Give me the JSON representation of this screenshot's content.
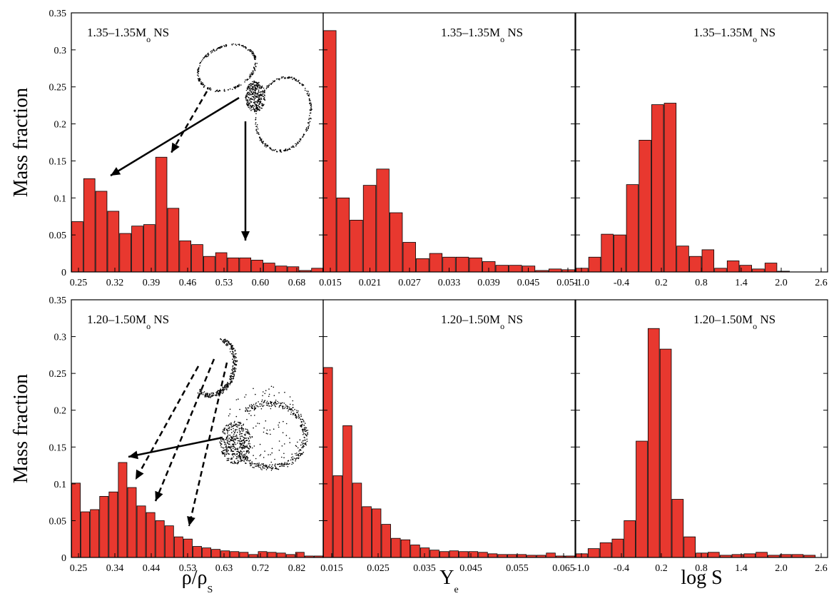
{
  "chart_data": {
    "type": "bar",
    "layout": "2x3 panel grid",
    "colors": {
      "bar": "#e8382f",
      "bar_stroke": "#000000",
      "axes": "#000000",
      "marker": "#000000"
    },
    "y_axis": {
      "label": "Mass fraction",
      "ylim": [
        0,
        0.35
      ],
      "ticks": [
        "0",
        "0.05",
        "0.1",
        "0.15",
        "0.2",
        "0.25",
        "0.3",
        "0.35"
      ]
    },
    "x_axis_labels": {
      "density": {
        "main": "ρ/ρ",
        "sub": "S"
      },
      "ye": {
        "main": "Y",
        "sub": "e"
      },
      "entropy": {
        "main": "log S",
        "sub": ""
      }
    },
    "rows": [
      {
        "model": {
          "prefix": "1.35–1.35M",
          "sub": "o",
          "suffix": " NS"
        },
        "panels": [
          {
            "quantity": "density",
            "ticks": [
              "0.25",
              "0.32",
              "0.39",
              "0.46",
              "0.53",
              "0.60",
              "0.68"
            ],
            "values": [
              0.068,
              0.126,
              0.109,
              0.082,
              0.052,
              0.062,
              0.064,
              0.155,
              0.086,
              0.042,
              0.037,
              0.021,
              0.026,
              0.019,
              0.019,
              0.016,
              0.012,
              0.008,
              0.007,
              0.002,
              0.005
            ]
          },
          {
            "quantity": "ye",
            "ticks": [
              "0.015",
              "0.021",
              "0.027",
              "0.033",
              "0.039",
              "0.045",
              "0.051"
            ],
            "values": [
              0.326,
              0.1,
              0.07,
              0.117,
              0.139,
              0.08,
              0.04,
              0.018,
              0.025,
              0.02,
              0.02,
              0.019,
              0.014,
              0.009,
              0.009,
              0.008,
              0.002,
              0.004,
              0.003
            ]
          },
          {
            "quantity": "entropy",
            "ticks": [
              "-1.0",
              "-0.4",
              "0.2",
              "0.8",
              "1.4",
              "2.0",
              "2.6"
            ],
            "values": [
              0.005,
              0.02,
              0.051,
              0.05,
              0.118,
              0.178,
              0.226,
              0.228,
              0.035,
              0.021,
              0.03,
              0.005,
              0.015,
              0.009,
              0.004,
              0.012,
              0.001,
              0,
              0,
              0
            ]
          }
        ]
      },
      {
        "model": {
          "prefix": "1.20–1.50M",
          "sub": "o",
          "suffix": " NS"
        },
        "panels": [
          {
            "quantity": "density",
            "ticks": [
              "0.25",
              "0.34",
              "0.44",
              "0.53",
              "0.63",
              "0.72",
              "0.82"
            ],
            "values": [
              0.101,
              0.062,
              0.065,
              0.083,
              0.089,
              0.129,
              0.095,
              0.07,
              0.061,
              0.05,
              0.043,
              0.028,
              0.025,
              0.015,
              0.013,
              0.011,
              0.009,
              0.008,
              0.007,
              0.004,
              0.008,
              0.007,
              0.006,
              0.004,
              0.007,
              0.002,
              0.002
            ]
          },
          {
            "quantity": "ye",
            "ticks": [
              "0.015",
              "0.025",
              "0.035",
              "0.045",
              "0.055",
              "0.065"
            ],
            "values": [
              0.258,
              0.111,
              0.179,
              0.101,
              0.069,
              0.066,
              0.045,
              0.026,
              0.024,
              0.017,
              0.013,
              0.01,
              0.008,
              0.009,
              0.008,
              0.008,
              0.007,
              0.005,
              0.004,
              0.004,
              0.004,
              0.003,
              0.003,
              0.006,
              0.002,
              0.002
            ]
          },
          {
            "quantity": "entropy",
            "ticks": [
              "-1.0",
              "-0.4",
              "0.2",
              "0.8",
              "1.4",
              "2.0",
              "2.6"
            ],
            "values": [
              0.005,
              0.012,
              0.02,
              0.025,
              0.05,
              0.158,
              0.311,
              0.283,
              0.079,
              0.028,
              0.006,
              0.007,
              0.003,
              0.004,
              0.005,
              0.007,
              0.003,
              0.004,
              0.004,
              0.003,
              0
            ]
          }
        ]
      }
    ]
  }
}
